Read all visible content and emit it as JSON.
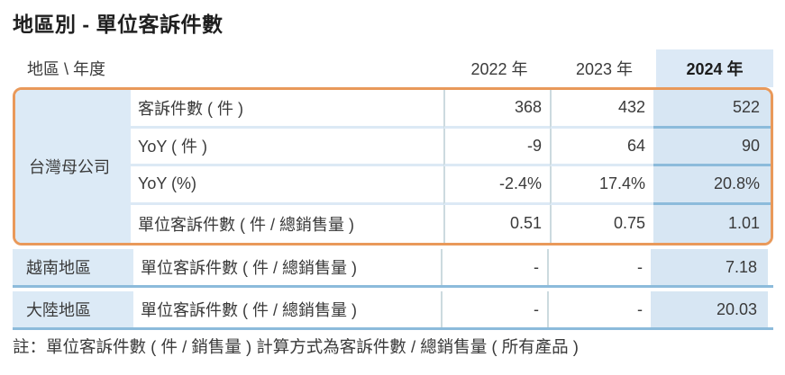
{
  "title": "地區別 - 單位客訴件數",
  "table": {
    "corner_label": "地區 \\ 年度",
    "year_columns": [
      "2022 年",
      "2023 年",
      "2024 年"
    ],
    "highlighted_year": "2024 年",
    "groups": [
      {
        "region": "台灣母公司",
        "highlighted": true,
        "rows": [
          {
            "metric": "客訴件數 ( 件 )",
            "values": [
              "368",
              "432",
              "522"
            ]
          },
          {
            "metric": "YoY ( 件 )",
            "values": [
              "-9",
              "64",
              "90"
            ]
          },
          {
            "metric": "YoY (%)",
            "values": [
              "-2.4%",
              "17.4%",
              "20.8%"
            ]
          },
          {
            "metric": "單位客訴件數 ( 件 / 總銷售量 )",
            "values": [
              "0.51",
              "0.75",
              "1.01"
            ]
          }
        ]
      },
      {
        "region": "越南地區",
        "highlighted": false,
        "rows": [
          {
            "metric": "單位客訴件數 ( 件 / 總銷售量 )",
            "values": [
              "-",
              "-",
              "7.18"
            ]
          }
        ]
      },
      {
        "region": "大陸地區",
        "highlighted": false,
        "rows": [
          {
            "metric": "單位客訴件數 ( 件 / 總銷售量 )",
            "values": [
              "-",
              "-",
              "20.03"
            ]
          }
        ]
      }
    ]
  },
  "note": "註：單位客訴件數 ( 件 / 銷售量 ) 計算方式為客訴件數 / 總銷售量 ( 所有產品 )",
  "colors": {
    "highlight_border": "#E9995A",
    "region_cell_bg": "#DCEAF6",
    "year_2024_bg": "#D7E6F3",
    "separator_strong": "#8CBBDB",
    "separator_light": "#DCE9F5",
    "column_divider": "#CCDADF",
    "text": "#3A3A3A",
    "title": "#1F1F1F"
  }
}
